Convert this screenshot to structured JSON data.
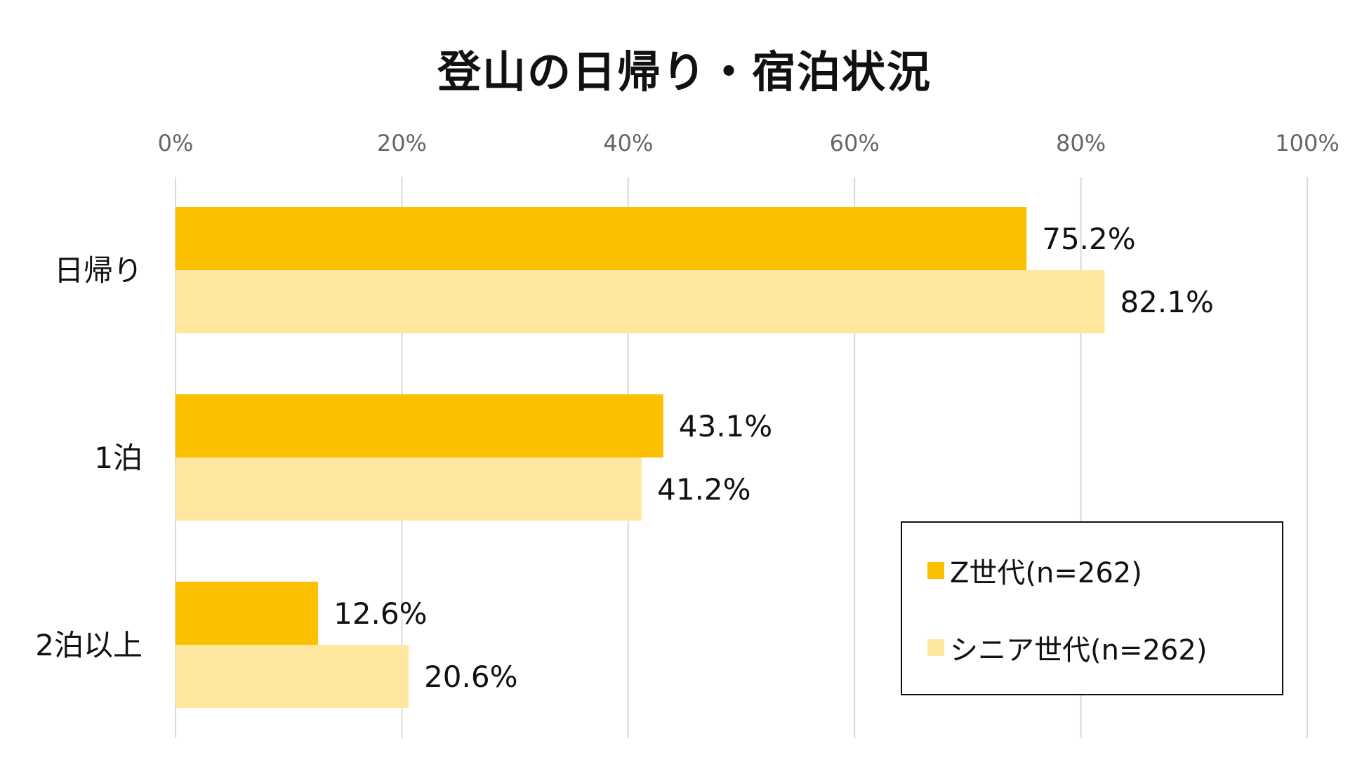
{
  "chart_data": {
    "type": "bar",
    "orientation": "horizontal",
    "title": "登山の日帰り・宿泊状況",
    "categories": [
      "日帰り",
      "1泊",
      "2泊以上"
    ],
    "series": [
      {
        "name": "Z世代(n=262)",
        "color": "#FBC100",
        "values": [
          75.2,
          43.1,
          12.6
        ],
        "labels": [
          "75.2%",
          "43.1%",
          "12.6%"
        ]
      },
      {
        "name": "シニア世代(n=262)",
        "color": "#FFE7A0",
        "values": [
          82.1,
          41.2,
          20.6
        ],
        "labels": [
          "82.1%",
          "41.2%",
          "20.6%"
        ]
      }
    ],
    "xaxis": {
      "range": [
        0,
        100
      ],
      "ticks": [
        0,
        20,
        40,
        60,
        80,
        100
      ],
      "tick_labels": [
        "0%",
        "20%",
        "40%",
        "60%",
        "80%",
        "100%"
      ],
      "position": "top",
      "gridlines": true
    },
    "xlabel": "",
    "ylabel": "",
    "legend": {
      "position": "bottom-right",
      "bordered": true
    }
  }
}
